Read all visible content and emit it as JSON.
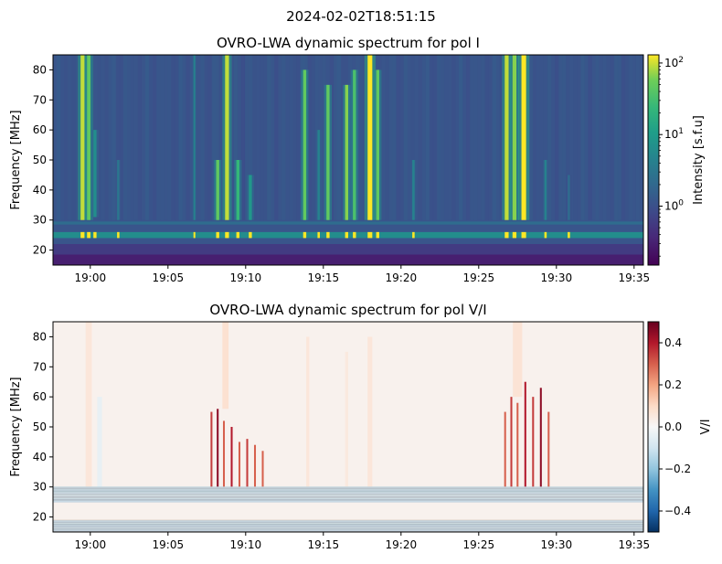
{
  "figure": {
    "suptitle": "2024-02-02T18:51:15"
  },
  "chart_data": [
    {
      "type": "heatmap",
      "title": "OVRO-LWA dynamic spectrum for pol I",
      "xlabel": "",
      "ylabel": "Frequency [MHz]",
      "x_ticks": [
        "19:00",
        "19:05",
        "19:10",
        "19:15",
        "19:20",
        "19:25",
        "19:30",
        "19:35"
      ],
      "x_range_minutes": [
        57.6,
        95.6
      ],
      "y_ticks": [
        20,
        30,
        40,
        50,
        60,
        70,
        80
      ],
      "ylim": [
        15,
        85
      ],
      "colormap": "viridis",
      "colorbar": {
        "label": "Intensity [s.f.u]",
        "scale": "log",
        "range": [
          0.15,
          130
        ],
        "ticks": [
          {
            "base": "10",
            "exp": "0",
            "value": 1
          },
          {
            "base": "10",
            "exp": "1",
            "value": 10
          },
          {
            "base": "10",
            "exp": "2",
            "value": 100
          }
        ]
      },
      "background_level": 0.3,
      "bursts": [
        {
          "t": 59.5,
          "fmin": 30,
          "fmax": 85,
          "w": 0.25,
          "level": 0.95
        },
        {
          "t": 59.9,
          "fmin": 30,
          "fmax": 85,
          "w": 0.22,
          "level": 0.85
        },
        {
          "t": 60.3,
          "fmin": 31,
          "fmax": 60,
          "w": 0.2,
          "level": 0.55
        },
        {
          "t": 61.8,
          "fmin": 30,
          "fmax": 50,
          "w": 0.15,
          "level": 0.45
        },
        {
          "t": 66.7,
          "fmin": 30,
          "fmax": 85,
          "w": 0.12,
          "level": 0.5
        },
        {
          "t": 68.2,
          "fmin": 30,
          "fmax": 50,
          "w": 0.2,
          "level": 0.85
        },
        {
          "t": 68.8,
          "fmin": 30,
          "fmax": 85,
          "w": 0.25,
          "level": 0.95
        },
        {
          "t": 69.5,
          "fmin": 30,
          "fmax": 50,
          "w": 0.2,
          "level": 0.75
        },
        {
          "t": 70.3,
          "fmin": 30,
          "fmax": 45,
          "w": 0.2,
          "level": 0.6
        },
        {
          "t": 73.8,
          "fmin": 30,
          "fmax": 80,
          "w": 0.2,
          "level": 0.85
        },
        {
          "t": 74.7,
          "fmin": 30,
          "fmax": 60,
          "w": 0.15,
          "level": 0.5
        },
        {
          "t": 75.3,
          "fmin": 30,
          "fmax": 75,
          "w": 0.2,
          "level": 0.85
        },
        {
          "t": 76.5,
          "fmin": 30,
          "fmax": 75,
          "w": 0.2,
          "level": 0.9
        },
        {
          "t": 77.0,
          "fmin": 30,
          "fmax": 80,
          "w": 0.2,
          "level": 0.8
        },
        {
          "t": 78.0,
          "fmin": 30,
          "fmax": 85,
          "w": 0.3,
          "level": 1.0
        },
        {
          "t": 78.5,
          "fmin": 30,
          "fmax": 80,
          "w": 0.2,
          "level": 0.85
        },
        {
          "t": 80.8,
          "fmin": 30,
          "fmax": 50,
          "w": 0.15,
          "level": 0.5
        },
        {
          "t": 86.8,
          "fmin": 30,
          "fmax": 85,
          "w": 0.25,
          "level": 0.95
        },
        {
          "t": 87.3,
          "fmin": 30,
          "fmax": 85,
          "w": 0.25,
          "level": 0.9
        },
        {
          "t": 87.9,
          "fmin": 30,
          "fmax": 85,
          "w": 0.3,
          "level": 1.0
        },
        {
          "t": 89.3,
          "fmin": 30,
          "fmax": 50,
          "w": 0.15,
          "level": 0.5
        },
        {
          "t": 90.8,
          "fmin": 30,
          "fmax": 45,
          "w": 0.15,
          "level": 0.4
        }
      ],
      "bands": [
        {
          "fmin": 15,
          "fmax": 18.5,
          "level": 0.1
        },
        {
          "fmin": 18.5,
          "fmax": 22,
          "level": 0.2
        },
        {
          "fmin": 24,
          "fmax": 26,
          "level": 0.55
        },
        {
          "fmin": 28.5,
          "fmax": 29.5,
          "level": 0.4
        }
      ]
    },
    {
      "type": "heatmap",
      "title": "OVRO-LWA dynamic spectrum for pol V/I",
      "xlabel": "",
      "ylabel": "Frequency [MHz]",
      "x_ticks": [
        "19:00",
        "19:05",
        "19:10",
        "19:15",
        "19:20",
        "19:25",
        "19:30",
        "19:35"
      ],
      "x_range_minutes": [
        57.6,
        95.6
      ],
      "y_ticks": [
        20,
        30,
        40,
        50,
        60,
        70,
        80
      ],
      "ylim": [
        15,
        85
      ],
      "colormap": "RdBu_r",
      "colorbar": {
        "label": "V/I",
        "scale": "linear",
        "range": [
          -0.5,
          0.5
        ],
        "ticks": [
          0.4,
          0.2,
          0.0,
          -0.2,
          -0.4
        ],
        "tick_labels": [
          "0.4",
          "0.2",
          "0.0",
          "−0.2",
          "−0.4"
        ]
      },
      "background_value": 0.02,
      "streaks": [
        {
          "t": 59.9,
          "fmin": 30,
          "fmax": 85,
          "w": 0.4,
          "value": 0.06
        },
        {
          "t": 60.6,
          "fmin": 30,
          "fmax": 60,
          "w": 0.3,
          "value": -0.04
        },
        {
          "t": 67.8,
          "fmin": 30,
          "fmax": 55,
          "w": 0.12,
          "value": 0.35
        },
        {
          "t": 68.2,
          "fmin": 30,
          "fmax": 56,
          "w": 0.12,
          "value": 0.45
        },
        {
          "t": 68.6,
          "fmin": 30,
          "fmax": 52,
          "w": 0.12,
          "value": 0.3
        },
        {
          "t": 69.1,
          "fmin": 30,
          "fmax": 50,
          "w": 0.12,
          "value": 0.4
        },
        {
          "t": 69.6,
          "fmin": 30,
          "fmax": 45,
          "w": 0.12,
          "value": 0.3
        },
        {
          "t": 70.1,
          "fmin": 30,
          "fmax": 46,
          "w": 0.12,
          "value": 0.35
        },
        {
          "t": 70.6,
          "fmin": 30,
          "fmax": 44,
          "w": 0.12,
          "value": 0.3
        },
        {
          "t": 71.1,
          "fmin": 30,
          "fmax": 42,
          "w": 0.12,
          "value": 0.3
        },
        {
          "t": 68.7,
          "fmin": 56,
          "fmax": 85,
          "w": 0.4,
          "value": 0.08
        },
        {
          "t": 74.0,
          "fmin": 30,
          "fmax": 80,
          "w": 0.2,
          "value": 0.06
        },
        {
          "t": 76.5,
          "fmin": 30,
          "fmax": 75,
          "w": 0.2,
          "value": 0.05
        },
        {
          "t": 78.0,
          "fmin": 30,
          "fmax": 80,
          "w": 0.3,
          "value": 0.06
        },
        {
          "t": 86.7,
          "fmin": 30,
          "fmax": 55,
          "w": 0.12,
          "value": 0.3
        },
        {
          "t": 87.1,
          "fmin": 30,
          "fmax": 60,
          "w": 0.12,
          "value": 0.35
        },
        {
          "t": 87.5,
          "fmin": 30,
          "fmax": 58,
          "w": 0.12,
          "value": 0.3
        },
        {
          "t": 88.0,
          "fmin": 30,
          "fmax": 65,
          "w": 0.12,
          "value": 0.4
        },
        {
          "t": 88.5,
          "fmin": 30,
          "fmax": 60,
          "w": 0.12,
          "value": 0.35
        },
        {
          "t": 89.0,
          "fmin": 30,
          "fmax": 63,
          "w": 0.12,
          "value": 0.45
        },
        {
          "t": 89.5,
          "fmin": 30,
          "fmax": 55,
          "w": 0.12,
          "value": 0.3
        },
        {
          "t": 87.5,
          "fmin": 60,
          "fmax": 85,
          "w": 0.6,
          "value": 0.07
        }
      ],
      "bands": [
        {
          "fmin": 25,
          "fmax": 30,
          "value": -0.1,
          "mixed": true
        },
        {
          "fmin": 15,
          "fmax": 19,
          "value": -0.12,
          "mixed": true
        }
      ]
    }
  ]
}
